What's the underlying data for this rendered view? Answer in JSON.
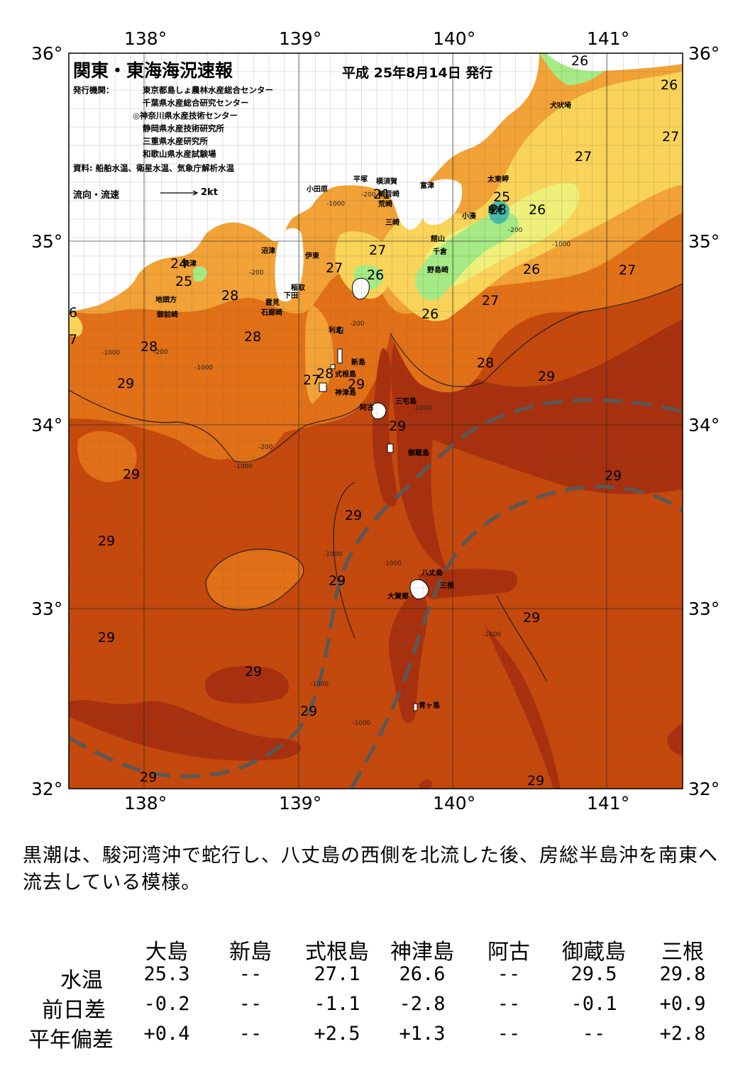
{
  "header": {
    "title": "関東・東海海況速報",
    "date": "平成 25年8月14日 発行",
    "issuer_label": "発行機関：",
    "institutions": [
      "東京都島しょ農林水産総合センター",
      "千葉県水産総合研究センター",
      "◎神奈川県水産技術センター",
      "静岡県水産技術研究所",
      "三重県水産研究所",
      "和歌山県水産試験場"
    ],
    "sources": "資料: 船舶水温、衛星水温、気象庁解析水温",
    "flow_label": "流向・流速",
    "flow_scale": "2kt"
  },
  "axes": {
    "lon_labels": [
      "138°",
      "139°",
      "140°",
      "141°"
    ],
    "lat_labels": [
      "36°",
      "35°",
      "34°",
      "33°",
      "32°"
    ]
  },
  "map_data": {
    "extent": {
      "lon": [
        137.5,
        141.5
      ],
      "lat": [
        32.0,
        36.0
      ]
    },
    "isotherm_labels": [
      "26",
      "27",
      "28",
      "29",
      "25",
      "23",
      "24",
      "21",
      "6",
      "7"
    ],
    "depth_labels": [
      "-200",
      "-1000"
    ],
    "places": [
      "犬吠埼",
      "太東岬",
      "小湊",
      "勝浦",
      "富津",
      "横須賀",
      "平塚",
      "観音崎",
      "荒崎",
      "三崎",
      "館山",
      "千倉",
      "野島崎",
      "小田原",
      "伊東",
      "沼津",
      "稲取",
      "下田",
      "雲見",
      "石廊崎",
      "御前崎",
      "地頭方",
      "焼津",
      "利島",
      "新島",
      "式根島",
      "神津島",
      "三宅島",
      "阿古",
      "御蔵島",
      "八丈島",
      "三根",
      "大賀郷",
      "青ヶ島"
    ],
    "colors": {
      "t29plus": "#a8300e",
      "t29": "#c5480c",
      "t28": "#e27016",
      "t27": "#f2a236",
      "t26": "#f9d459",
      "t25": "#eef07a",
      "t24": "#a5ea84",
      "t23": "#45bca8",
      "kuroshio_axis": "#585858"
    }
  },
  "summary": "黒潮は、駿河湾沖で蛇行し、八丈島の西側を北流した後、房総半島沖を南東へ流去している模様。",
  "table": {
    "columns": [
      "大島",
      "新島",
      "式根島",
      "神津島",
      "阿古",
      "御蔵島",
      "三根"
    ],
    "rows": [
      {
        "label": "水温",
        "values": [
          "25.3",
          "--",
          "27.1",
          "26.6",
          "--",
          "29.5",
          "29.8"
        ]
      },
      {
        "label": "前日差",
        "values": [
          "-0.2",
          "--",
          "-1.1",
          "-2.8",
          "--",
          "-0.1",
          "+0.9"
        ]
      },
      {
        "label": "平年偏差",
        "values": [
          "+0.4",
          "--",
          "+2.5",
          "+1.3",
          "--",
          "--",
          "+2.8"
        ]
      }
    ]
  }
}
